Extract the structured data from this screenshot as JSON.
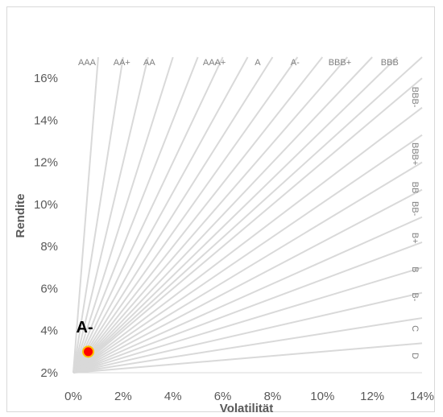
{
  "chart_data": {
    "type": "scatter",
    "xlabel": "Volatilität",
    "ylabel": "Rendite",
    "xlim": [
      0,
      14
    ],
    "ylim": [
      2,
      17
    ],
    "x_ticks": [
      "0%",
      "2%",
      "4%",
      "6%",
      "8%",
      "10%",
      "12%",
      "14%"
    ],
    "y_ticks": [
      "2%",
      "4%",
      "6%",
      "8%",
      "10%",
      "12%",
      "14%",
      "16%"
    ],
    "origin": [
      0,
      2
    ],
    "rating_lines": [
      {
        "x": 1.0,
        "y": 17
      },
      {
        "x": 2.0,
        "y": 17
      },
      {
        "x": 3.0,
        "y": 17
      },
      {
        "x": 4.0,
        "y": 17
      },
      {
        "x": 5.0,
        "y": 17
      },
      {
        "x": 6.0,
        "y": 17
      },
      {
        "x": 7.0,
        "y": 17
      },
      {
        "x": 8.0,
        "y": 17
      },
      {
        "x": 9.0,
        "y": 17
      },
      {
        "x": 10.0,
        "y": 17
      },
      {
        "x": 11.0,
        "y": 17
      },
      {
        "x": 12.0,
        "y": 17
      },
      {
        "x": 13.0,
        "y": 17
      },
      {
        "x": 14.0,
        "y": 17
      },
      {
        "x": 14,
        "y": 16.0
      },
      {
        "x": 14,
        "y": 14.6
      },
      {
        "x": 14,
        "y": 13.3
      },
      {
        "x": 14,
        "y": 12.0
      },
      {
        "x": 14,
        "y": 10.7
      },
      {
        "x": 14,
        "y": 9.4
      },
      {
        "x": 14,
        "y": 8.2
      },
      {
        "x": 14,
        "y": 7.0
      },
      {
        "x": 14,
        "y": 5.8
      },
      {
        "x": 14,
        "y": 4.6
      },
      {
        "x": 14,
        "y": 3.4
      }
    ],
    "top_labels": [
      {
        "text": "AAA",
        "x": 0.55
      },
      {
        "text": "AA+",
        "x": 1.95
      },
      {
        "text": "AA",
        "x": 3.05
      },
      {
        "text": "AA-",
        "x": 5.5
      },
      {
        "text": "A+",
        "x": 5.9
      },
      {
        "text": "A",
        "x": 7.4
      },
      {
        "text": "A-",
        "x": 8.9
      },
      {
        "text": "BBB+",
        "x": 10.7
      },
      {
        "text": "BBB",
        "x": 12.7
      }
    ],
    "right_labels": [
      {
        "text": "BBB-",
        "y": 15.1
      },
      {
        "text": "BBB+",
        "y": 12.4
      },
      {
        "text": "BB",
        "y": 10.8
      },
      {
        "text": "BB-",
        "y": 9.8
      },
      {
        "text": "B+",
        "y": 8.4
      },
      {
        "text": "B",
        "y": 6.9
      },
      {
        "text": "B-",
        "y": 5.6
      },
      {
        "text": "C",
        "y": 4.1
      },
      {
        "text": "D",
        "y": 2.8
      }
    ],
    "points": [
      {
        "label": "A-",
        "x": 0.6,
        "y": 3.0,
        "color": "#ff0000",
        "edge": "#ffc000"
      }
    ],
    "line_color": "#d9d9d9",
    "grid": false
  }
}
